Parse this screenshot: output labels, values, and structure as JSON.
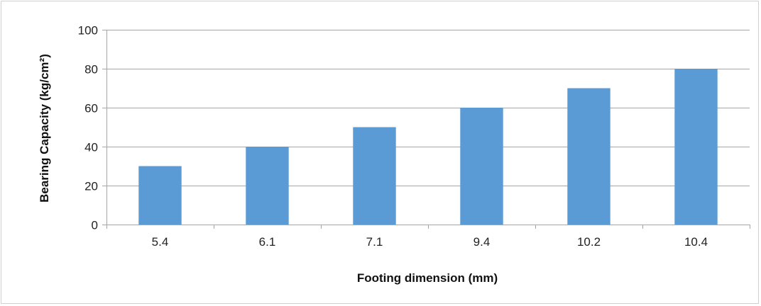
{
  "chart_data": {
    "type": "bar",
    "title": "",
    "xlabel": "Footing dimension (mm)",
    "ylabel": "Bearing Capacity (kg/cm²)",
    "categories": [
      "5.4",
      "6.1",
      "7.1",
      "9.4",
      "10.2",
      "10.4"
    ],
    "values": [
      30,
      40,
      50,
      60,
      70,
      80
    ],
    "ylim": [
      0,
      100
    ],
    "yticks": [
      0,
      20,
      40,
      60,
      80,
      100
    ],
    "grid": true,
    "legend": "none",
    "bar_color": "#5b9bd5",
    "grid_color": "#a6a6a6"
  }
}
